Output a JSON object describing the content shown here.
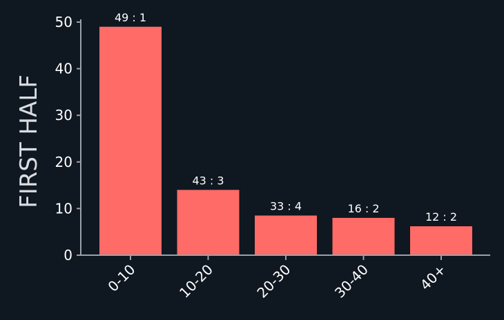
{
  "chart_data": {
    "type": "bar",
    "ylabel": "FIRST HALF",
    "categories": [
      "0-10",
      "10-20",
      "20-30",
      "30-40",
      "40+"
    ],
    "values": [
      49,
      14,
      8.5,
      8,
      6.2
    ],
    "data_labels": [
      "49 : 1",
      "43 : 3",
      "33 : 4",
      "16 : 2",
      "12 : 2"
    ],
    "ylim": [
      0,
      50
    ],
    "yticks": [
      0,
      10,
      20,
      30,
      40,
      50
    ],
    "grid": false,
    "bar_color": "#ff6b66",
    "axis_color": "#9aa3ad",
    "background": "#0f1720"
  }
}
